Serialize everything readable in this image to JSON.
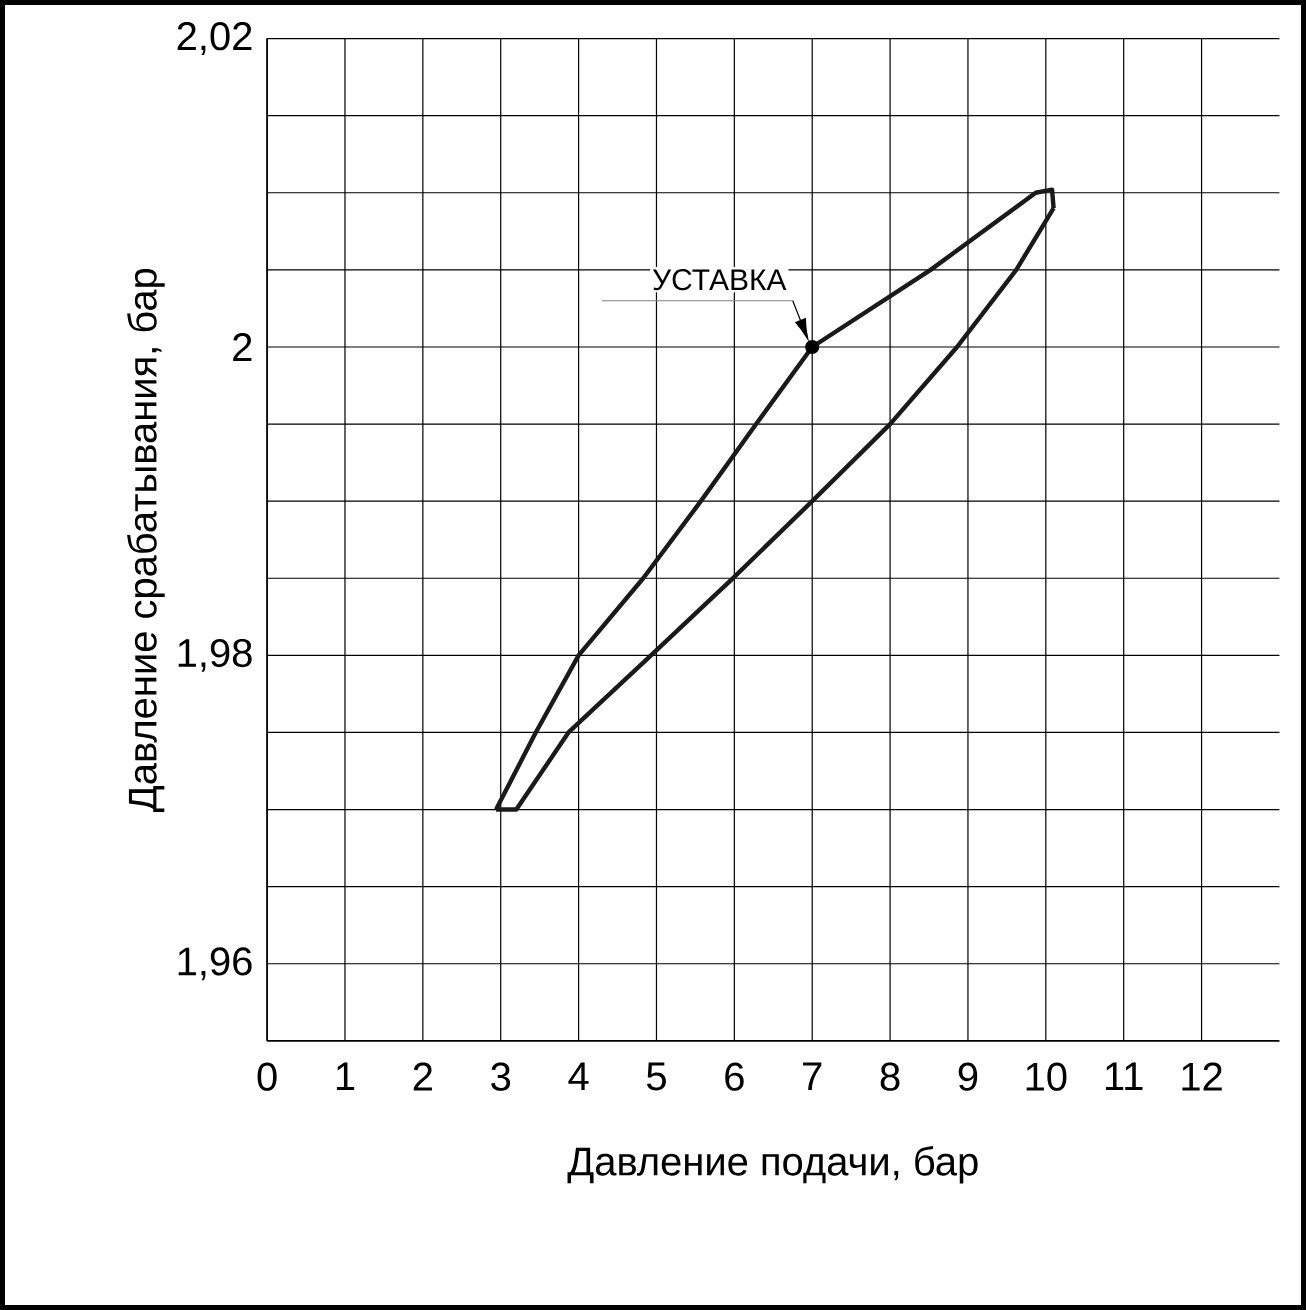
{
  "chart_data": {
    "type": "line",
    "xlabel": "Давление подачи, бар",
    "ylabel": "Давление срабатывания, бар",
    "series": [
      {
        "color": "#1a1a1a",
        "x": [
          2.94,
          3.45,
          4.0,
          4.83,
          5.57,
          6.28,
          7.0,
          8.52,
          9.87,
          10.08,
          10.1
        ],
        "values": [
          1.97,
          1.975,
          1.98,
          1.985,
          1.99,
          1.995,
          2.0,
          2.005,
          2.01,
          2.0102,
          2.009
        ]
      },
      {
        "color": "#1a1a1a",
        "x": [
          2.94,
          3.2,
          3.87,
          4.93,
          5.98,
          7.0,
          8.0,
          8.86,
          9.62,
          10.1
        ],
        "values": [
          1.97,
          1.97,
          1.975,
          1.98,
          1.985,
          1.99,
          1.995,
          2.0,
          2.005,
          2.009
        ]
      }
    ],
    "xlim": [
      0,
      13
    ],
    "xticks": [
      0,
      1,
      2,
      3,
      4,
      5,
      6,
      7,
      8,
      9,
      10,
      11,
      12
    ],
    "ylim": [
      1.955,
      2.02
    ],
    "yticks": [
      {
        "value": 1.96,
        "label": "1,96"
      },
      {
        "value": 1.965,
        "label": null
      },
      {
        "value": 1.97,
        "label": null
      },
      {
        "value": 1.975,
        "label": null
      },
      {
        "value": 1.98,
        "label": "1,98"
      },
      {
        "value": 1.985,
        "label": null
      },
      {
        "value": 1.99,
        "label": null
      },
      {
        "value": 1.995,
        "label": null
      },
      {
        "value": 2.0,
        "label": "2"
      },
      {
        "value": 2.005,
        "label": null
      },
      {
        "value": 2.01,
        "label": null
      },
      {
        "value": 2.015,
        "label": null
      },
      {
        "value": 2.02,
        "label": "2,02"
      }
    ],
    "grid": true,
    "marker": "none",
    "line_style": "solid",
    "annotations": [
      {
        "text": "УСТАВКА",
        "x": 7,
        "y": 2.0
      }
    ]
  }
}
